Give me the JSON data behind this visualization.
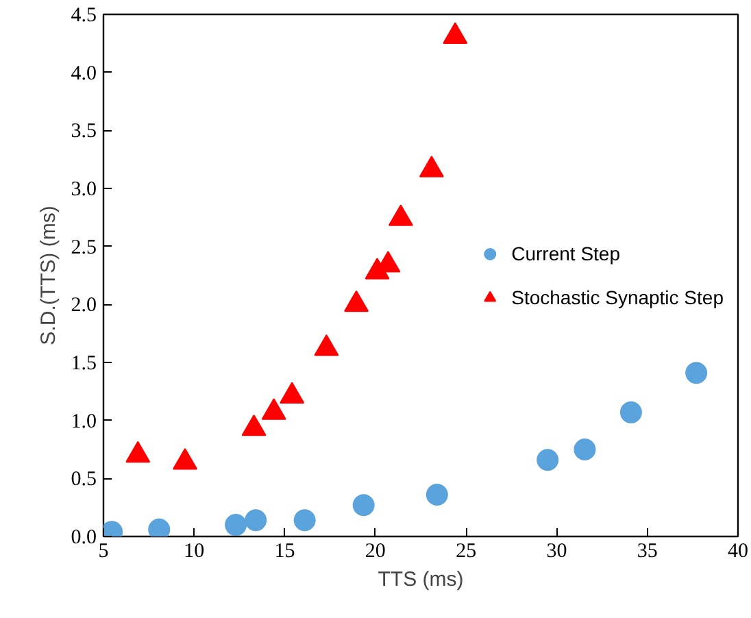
{
  "chart_data": {
    "type": "scatter",
    "xlabel": "TTS (ms)",
    "ylabel": "S.D.(TTS) (ms)",
    "xlim": [
      5,
      40
    ],
    "ylim": [
      0,
      4.5
    ],
    "xticks": [
      5,
      10,
      15,
      20,
      25,
      30,
      35,
      40
    ],
    "yticks": [
      {
        "value": 0,
        "label": "0.0"
      },
      0.5,
      {
        "value": 1,
        "label": "1.0"
      },
      1.5,
      {
        "value": 2,
        "label": "2.0"
      },
      2.5,
      {
        "value": 3,
        "label": "3.0"
      },
      3.5,
      {
        "value": 4,
        "label": "4.0"
      },
      4.5
    ],
    "grid": false,
    "legend": "right",
    "series": [
      {
        "name": "Current Step",
        "color": "#5ba3dc",
        "marker": "circle",
        "x": [
          5.46,
          8.07,
          12.3,
          13.4,
          16.1,
          19.35,
          23.4,
          29.5,
          31.55,
          34.1,
          37.7
        ],
        "values": [
          0.04,
          0.06,
          0.1,
          0.14,
          0.14,
          0.27,
          0.36,
          0.66,
          0.75,
          1.07,
          1.41
        ]
      },
      {
        "name": "Stochastic Synaptic Step",
        "color": "#ff0000",
        "marker": "triangle",
        "x": [
          6.9,
          9.5,
          13.3,
          14.4,
          15.4,
          17.3,
          18.95,
          20.1,
          20.7,
          21.4,
          23.1,
          24.4
        ],
        "values": [
          0.7,
          0.64,
          0.93,
          1.07,
          1.21,
          1.62,
          2.0,
          2.28,
          2.34,
          2.74,
          3.16,
          4.31
        ]
      }
    ]
  }
}
